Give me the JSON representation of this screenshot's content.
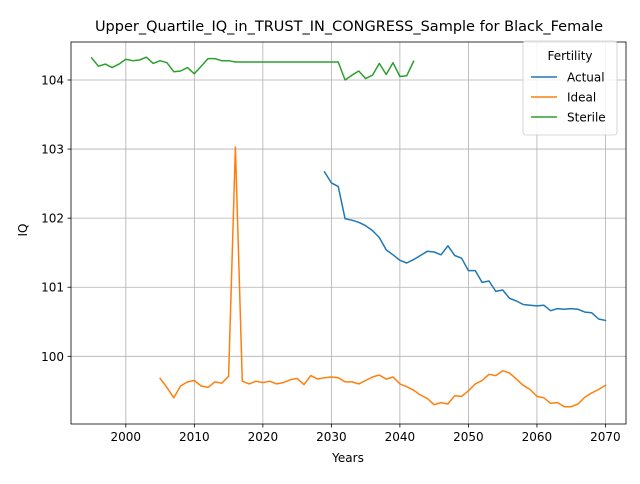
{
  "chart_data": {
    "type": "line",
    "title": "Upper_Quartile_IQ_in_TRUST_IN_CONGRESS_Sample for Black_Female",
    "xlabel": "Years",
    "ylabel": "IQ",
    "xlim": [
      1992,
      2073
    ],
    "ylim": [
      99.02,
      104.55
    ],
    "xticks": [
      2000,
      2010,
      2020,
      2030,
      2040,
      2050,
      2060,
      2070
    ],
    "yticks": [
      100,
      101,
      102,
      103,
      104
    ],
    "grid": true,
    "legend": {
      "title": "Fertility",
      "position": "top-right"
    },
    "series": [
      {
        "name": "Actual",
        "color": "#1f77b4",
        "x": [
          2029,
          2030,
          2031,
          2032,
          2033,
          2034,
          2035,
          2036,
          2037,
          2038,
          2039,
          2040,
          2041,
          2042,
          2043,
          2044,
          2045,
          2046,
          2047,
          2048,
          2049,
          2050,
          2051,
          2052,
          2053,
          2054,
          2055,
          2056,
          2057,
          2058,
          2059,
          2060,
          2061,
          2062,
          2063,
          2064,
          2065,
          2066,
          2067,
          2068,
          2069,
          2070
        ],
        "y": [
          102.67,
          102.51,
          102.46,
          101.99,
          101.97,
          101.94,
          101.89,
          101.82,
          101.72,
          101.54,
          101.47,
          101.39,
          101.35,
          101.4,
          101.46,
          101.52,
          101.51,
          101.47,
          101.6,
          101.46,
          101.42,
          101.24,
          101.24,
          101.07,
          101.09,
          100.94,
          100.96,
          100.84,
          100.8,
          100.75,
          100.74,
          100.73,
          100.74,
          100.66,
          100.69,
          100.68,
          100.69,
          100.68,
          100.64,
          100.63,
          100.54,
          100.52
        ]
      },
      {
        "name": "Ideal",
        "color": "#ff7f0e",
        "x": [
          2005,
          2006,
          2007,
          2008,
          2009,
          2010,
          2011,
          2012,
          2013,
          2014,
          2015,
          2016,
          2017,
          2018,
          2019,
          2020,
          2021,
          2022,
          2023,
          2024,
          2025,
          2026,
          2027,
          2028,
          2029,
          2030,
          2031,
          2032,
          2033,
          2034,
          2035,
          2036,
          2037,
          2038,
          2039,
          2040,
          2041,
          2042,
          2043,
          2044,
          2045,
          2046,
          2047,
          2048,
          2049,
          2050,
          2051,
          2052,
          2053,
          2054,
          2055,
          2056,
          2057,
          2058,
          2059,
          2060,
          2061,
          2062,
          2063,
          2064,
          2065,
          2066,
          2067,
          2068,
          2069,
          2070
        ],
        "y": [
          99.68,
          99.55,
          99.4,
          99.57,
          99.63,
          99.65,
          99.57,
          99.55,
          99.63,
          99.61,
          99.71,
          103.03,
          99.64,
          99.6,
          99.64,
          99.62,
          99.64,
          99.6,
          99.62,
          99.66,
          99.68,
          99.59,
          99.72,
          99.67,
          99.69,
          99.7,
          99.69,
          99.63,
          99.63,
          99.6,
          99.65,
          99.7,
          99.73,
          99.67,
          99.7,
          99.6,
          99.56,
          99.51,
          99.44,
          99.39,
          99.3,
          99.33,
          99.31,
          99.43,
          99.42,
          99.5,
          99.6,
          99.65,
          99.74,
          99.72,
          99.79,
          99.76,
          99.67,
          99.58,
          99.52,
          99.42,
          99.4,
          99.32,
          99.33,
          99.27,
          99.27,
          99.31,
          99.41,
          99.47,
          99.52,
          99.58
        ]
      },
      {
        "name": "Sterile",
        "color": "#2ca02c",
        "x": [
          1995,
          1996,
          1997,
          1998,
          1999,
          2000,
          2001,
          2002,
          2003,
          2004,
          2005,
          2006,
          2007,
          2008,
          2009,
          2010,
          2011,
          2012,
          2013,
          2014,
          2015,
          2016,
          2017,
          2018,
          2019,
          2020,
          2021,
          2022,
          2023,
          2024,
          2025,
          2026,
          2027,
          2028,
          2029,
          2030,
          2031,
          2032,
          2033,
          2034,
          2035,
          2036,
          2037,
          2038,
          2039,
          2040,
          2041,
          2042
        ],
        "y": [
          104.32,
          104.2,
          104.23,
          104.18,
          104.23,
          104.3,
          104.28,
          104.29,
          104.33,
          104.24,
          104.28,
          104.25,
          104.12,
          104.13,
          104.18,
          104.09,
          104.2,
          104.31,
          104.31,
          104.28,
          104.28,
          104.26,
          104.26,
          104.26,
          104.26,
          104.26,
          104.26,
          104.26,
          104.26,
          104.26,
          104.26,
          104.26,
          104.26,
          104.26,
          104.26,
          104.26,
          104.26,
          104.0,
          104.07,
          104.13,
          104.02,
          104.07,
          104.24,
          104.08,
          104.25,
          104.05,
          104.06,
          104.27
        ]
      }
    ]
  }
}
